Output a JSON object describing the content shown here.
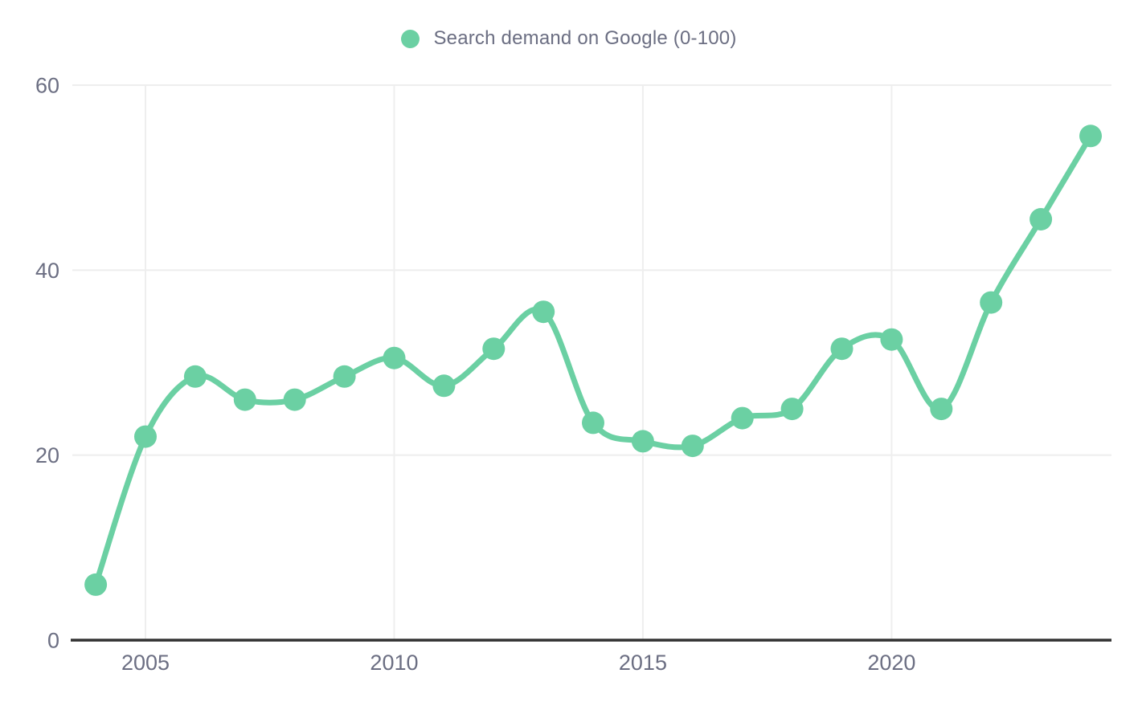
{
  "colors": {
    "series": "#6bd0a3",
    "grid": "#eeeeee",
    "axis": "#323232",
    "tick_text": "#6b6e82",
    "background": "#ffffff"
  },
  "chart_data": {
    "type": "line",
    "title": "",
    "legend": {
      "label": "Search demand on Google (0-100)",
      "position": "top"
    },
    "series": [
      {
        "name": "Search demand on Google (0-100)",
        "x": [
          2004,
          2005,
          2006,
          2007,
          2008,
          2009,
          2010,
          2011,
          2012,
          2013,
          2014,
          2015,
          2016,
          2017,
          2018,
          2019,
          2020,
          2021,
          2022,
          2023,
          2024
        ],
        "values": [
          6,
          22,
          28.5,
          26,
          26,
          28.5,
          30.5,
          27.5,
          31.5,
          35.5,
          23.5,
          21.5,
          21,
          24,
          25,
          31.5,
          32.5,
          25,
          36.5,
          45.5,
          54.5
        ]
      }
    ],
    "xlabel": "",
    "ylabel": "",
    "xticks": [
      2005,
      2010,
      2015,
      2020
    ],
    "yticks": [
      0,
      20,
      40,
      60
    ],
    "xlim": [
      2003.53,
      2024.42
    ],
    "ylim": [
      0,
      60
    ],
    "grid": true,
    "smooth": true,
    "marker": "circle",
    "line_width": 7,
    "marker_radius": 14
  }
}
